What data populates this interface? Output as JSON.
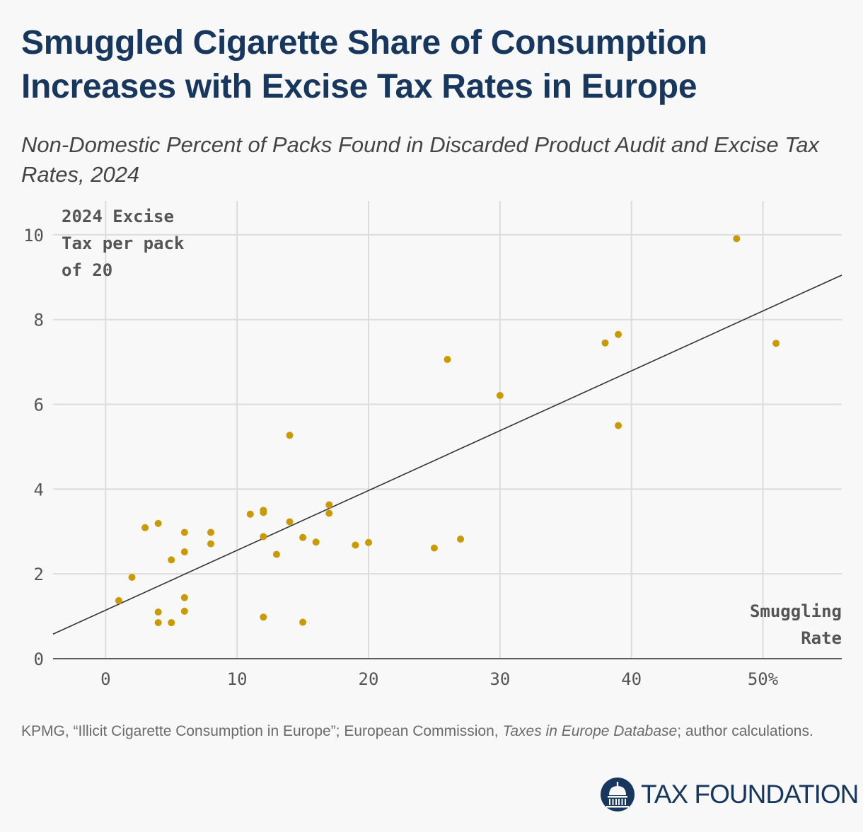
{
  "header": {
    "title": "Smuggled Cigarette Share of Consumption Increases with Excise Tax Rates in Europe",
    "subtitle": "Non-Domestic Percent of Packs Found in Discarded Product Audit and Excise Tax Rates, 2024"
  },
  "source": {
    "text_prefix": "KPMG, “Illicit Cigarette Consumption in Europe”; European Commission, ",
    "text_italic": "Taxes in Europe Database",
    "text_suffix": "; author calculations."
  },
  "logo": {
    "text": "TAX FOUNDATION",
    "icon": "capitol-dome-icon"
  },
  "colors": {
    "title": "#17375e",
    "points": "#c99a06",
    "trend": "#333333",
    "grid": "#dcdcdc"
  },
  "chart_data": {
    "type": "scatter",
    "xlabel": "Smuggling Rate",
    "ylabel": "2024 Excise Tax per pack of 20",
    "ylabel_lines": [
      "2024 Excise",
      "Tax per pack",
      "of 20"
    ],
    "xlabel_lines": [
      "Smuggling",
      "Rate"
    ],
    "xlim": [
      -4,
      56
    ],
    "ylim": [
      0,
      10.8
    ],
    "x_ticks": [
      0,
      10,
      20,
      30,
      40,
      50
    ],
    "x_tick_labels": [
      "0",
      "10",
      "20",
      "30",
      "40",
      "50%"
    ],
    "y_ticks": [
      0,
      2,
      4,
      6,
      8,
      10
    ],
    "y_tick_labels": [
      "0",
      "2",
      "4",
      "6",
      "8",
      "10"
    ],
    "grid": true,
    "trendline": {
      "x0": -4,
      "y0": 0.58,
      "x1": 56,
      "y1": 9.05
    },
    "points": [
      {
        "x": 1,
        "y": 1.37
      },
      {
        "x": 2,
        "y": 1.92
      },
      {
        "x": 3,
        "y": 3.09
      },
      {
        "x": 4,
        "y": 3.19
      },
      {
        "x": 4,
        "y": 1.1
      },
      {
        "x": 4,
        "y": 0.85
      },
      {
        "x": 5,
        "y": 2.33
      },
      {
        "x": 5,
        "y": 0.85
      },
      {
        "x": 6,
        "y": 2.98
      },
      {
        "x": 6,
        "y": 2.52
      },
      {
        "x": 6,
        "y": 1.44
      },
      {
        "x": 6,
        "y": 1.12
      },
      {
        "x": 8,
        "y": 2.98
      },
      {
        "x": 8,
        "y": 2.71
      },
      {
        "x": 11,
        "y": 3.41
      },
      {
        "x": 12,
        "y": 3.5
      },
      {
        "x": 12,
        "y": 3.45
      },
      {
        "x": 12,
        "y": 2.88
      },
      {
        "x": 12,
        "y": 0.98
      },
      {
        "x": 13,
        "y": 2.46
      },
      {
        "x": 14,
        "y": 5.27
      },
      {
        "x": 14,
        "y": 3.23
      },
      {
        "x": 15,
        "y": 2.86
      },
      {
        "x": 15,
        "y": 0.86
      },
      {
        "x": 16,
        "y": 2.75
      },
      {
        "x": 17,
        "y": 3.63
      },
      {
        "x": 17,
        "y": 3.43
      },
      {
        "x": 19,
        "y": 2.68
      },
      {
        "x": 20,
        "y": 2.74
      },
      {
        "x": 25,
        "y": 2.61
      },
      {
        "x": 26,
        "y": 7.06
      },
      {
        "x": 27,
        "y": 2.82
      },
      {
        "x": 30,
        "y": 6.21
      },
      {
        "x": 38,
        "y": 7.45
      },
      {
        "x": 39,
        "y": 7.65
      },
      {
        "x": 39,
        "y": 5.5
      },
      {
        "x": 48,
        "y": 9.91
      },
      {
        "x": 51,
        "y": 7.44
      }
    ]
  }
}
